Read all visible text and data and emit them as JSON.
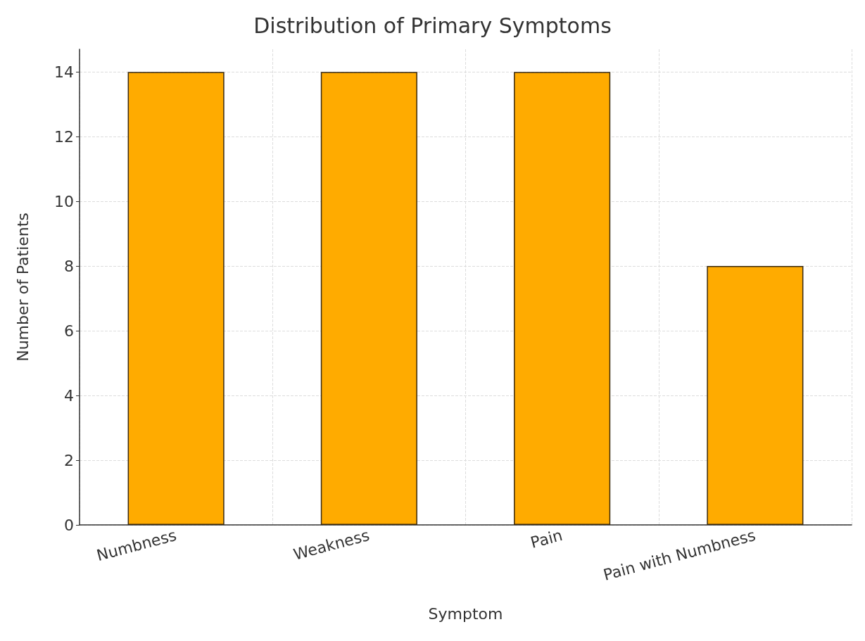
{
  "chart_data": {
    "type": "bar",
    "title": "Distribution of Primary Symptoms",
    "xlabel": "Symptom",
    "ylabel": "Number of Patients",
    "categories": [
      "Numbness",
      "Weakness",
      "Pain",
      "Pain with Numbness"
    ],
    "values": [
      14,
      14,
      14,
      8
    ],
    "color": "#ffab00",
    "ylim": [
      0,
      14.7
    ],
    "yticks": [
      0,
      2,
      4,
      6,
      8,
      10,
      12,
      14
    ],
    "grid": true
  }
}
